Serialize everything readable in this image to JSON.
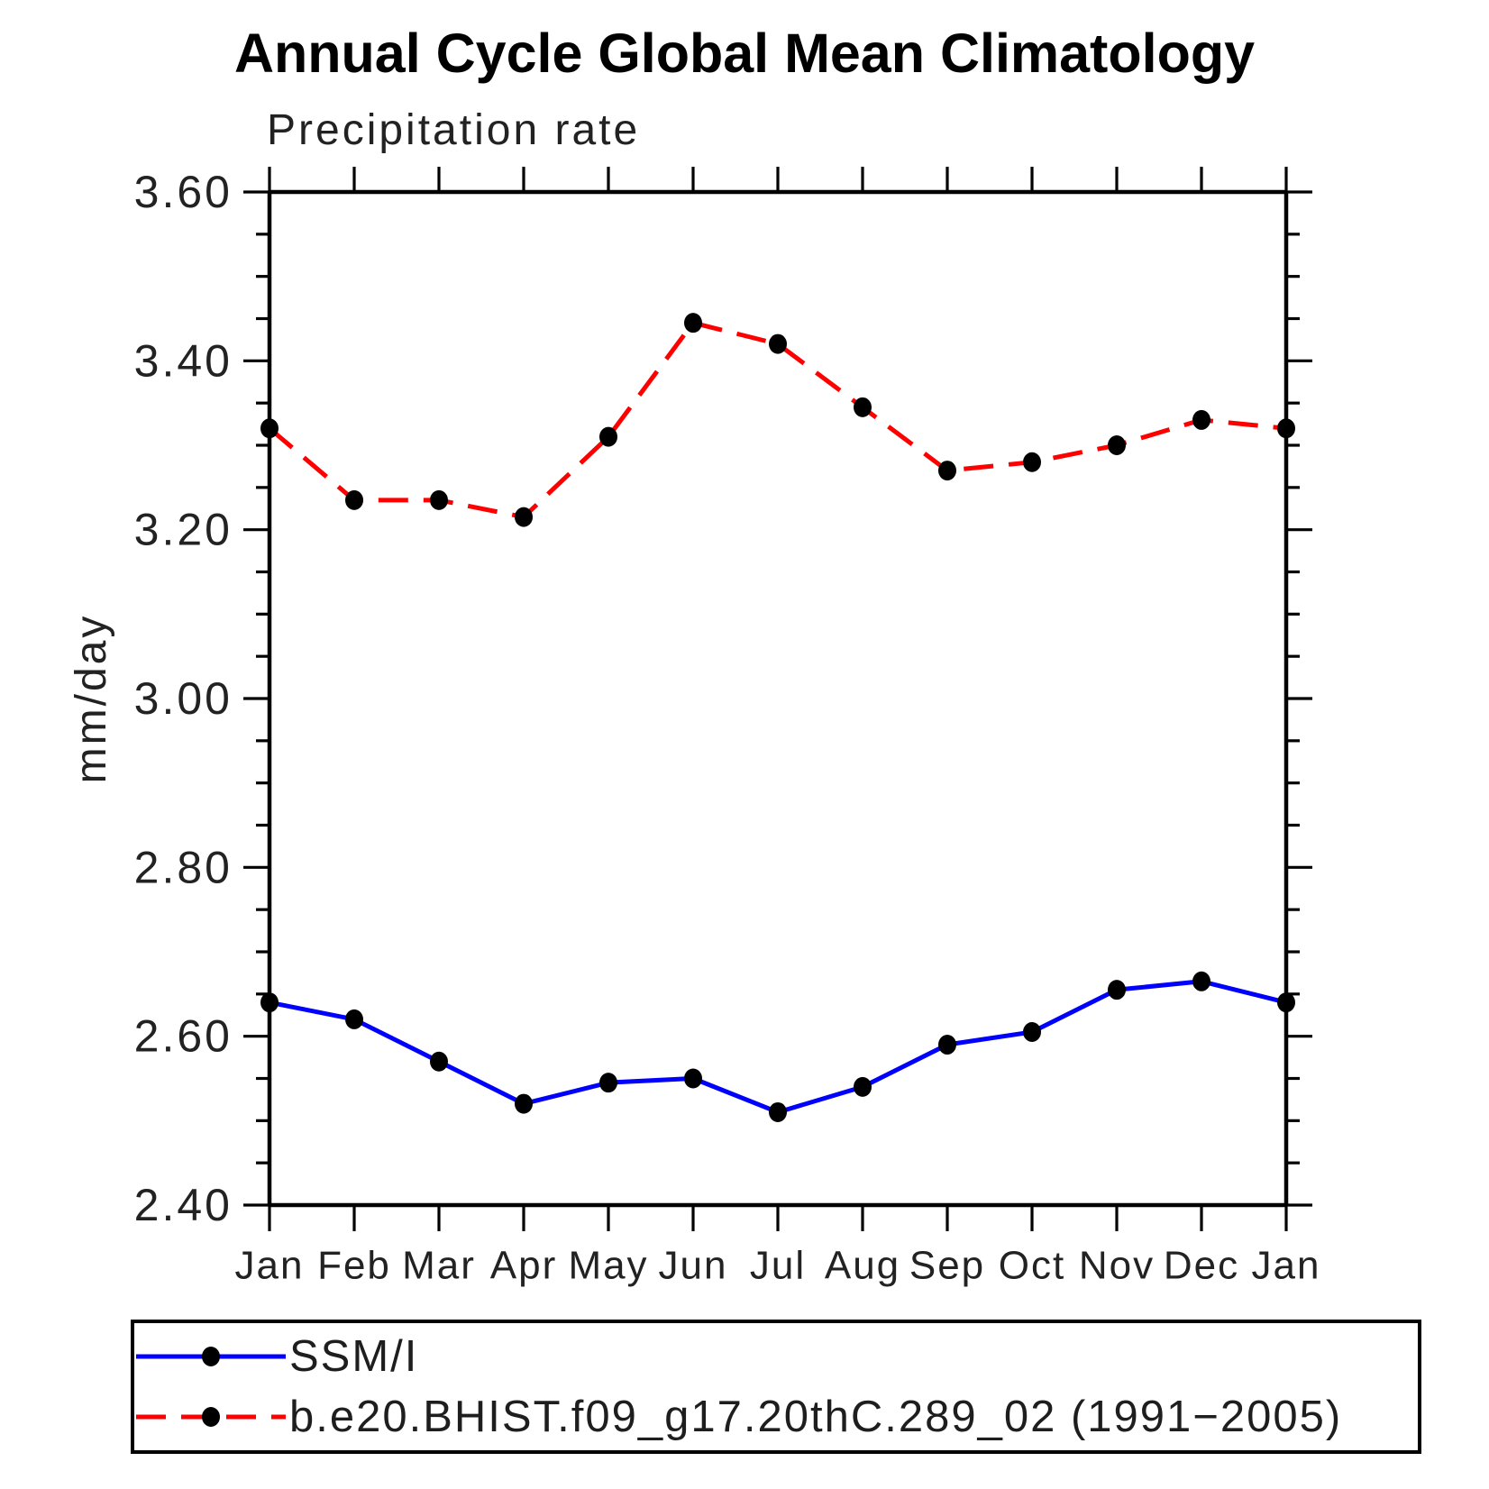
{
  "chart_data": {
    "type": "line",
    "title": "Annual Cycle Global Mean Climatology",
    "subtitle": "Precipitation rate",
    "xlabel": "",
    "ylabel": "mm/day",
    "x_categories": [
      "Jan",
      "Feb",
      "Mar",
      "Apr",
      "May",
      "Jun",
      "Jul",
      "Aug",
      "Sep",
      "Oct",
      "Nov",
      "Dec",
      "Jan"
    ],
    "ylim": [
      2.4,
      3.6
    ],
    "yticks": [
      {
        "value": 3.6,
        "label": "3.60"
      },
      {
        "value": 3.4,
        "label": "3.40"
      },
      {
        "value": 3.2,
        "label": "3.20"
      },
      {
        "value": 3.0,
        "label": "3.00"
      },
      {
        "value": 2.8,
        "label": "2.80"
      },
      {
        "value": 2.6,
        "label": "2.60"
      },
      {
        "value": 2.4,
        "label": "2.40"
      }
    ],
    "yminor_step": 0.05,
    "grid": false,
    "axis_color": "#000000",
    "marker": "filled-circle",
    "marker_color": "#000000",
    "legend_position": "bottom-left-box",
    "series": [
      {
        "name": "SSM/I",
        "color": "#0000ff",
        "line_style": "solid",
        "values": [
          2.64,
          2.62,
          2.57,
          2.52,
          2.545,
          2.55,
          2.51,
          2.54,
          2.59,
          2.605,
          2.655,
          2.665,
          2.64
        ]
      },
      {
        "name": "b.e20.BHIST.f09_g17.20thC.289_02 (1991−2005)",
        "color": "#ff0000",
        "line_style": "dashed",
        "values": [
          3.32,
          3.235,
          3.235,
          3.215,
          3.31,
          3.445,
          3.42,
          3.345,
          3.27,
          3.28,
          3.3,
          3.33,
          3.32
        ]
      }
    ]
  }
}
